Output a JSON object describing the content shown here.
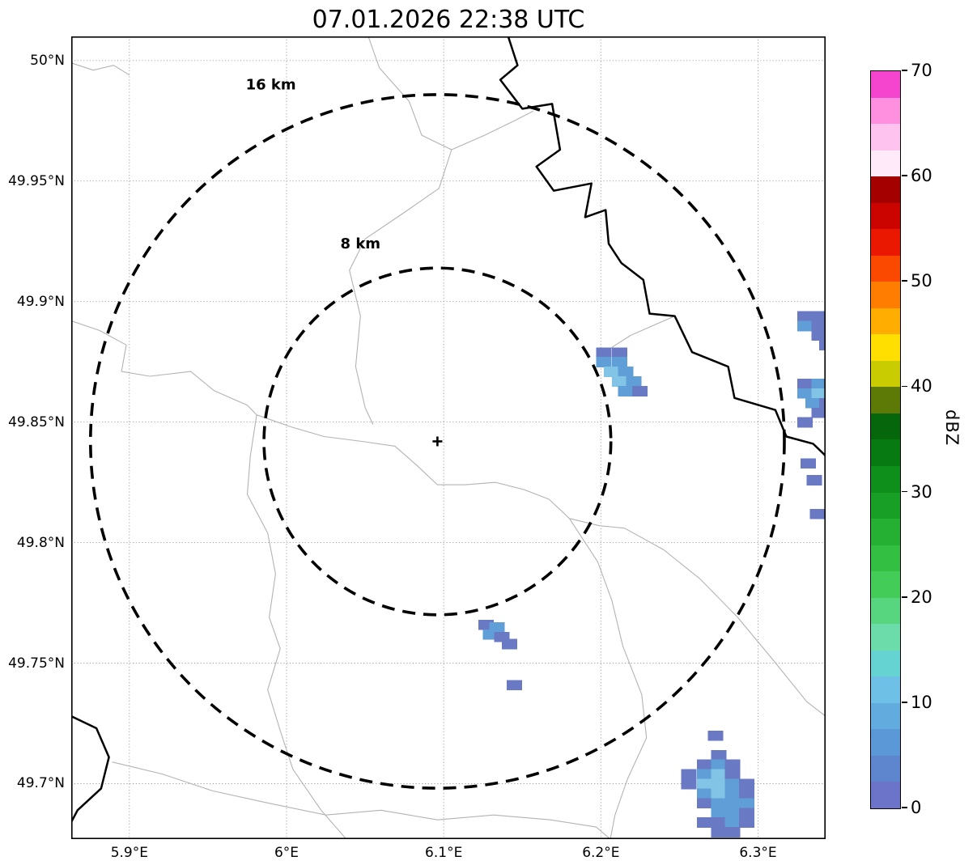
{
  "title": "07.01.2026 22:38 UTC",
  "chart_data": {
    "type": "heatmap",
    "title": "07.01.2026 22:38 UTC",
    "projection": "lon-lat",
    "grid": true,
    "extent": {
      "lon_min": 5.863,
      "lon_max": 6.343,
      "lat_min": 49.677,
      "lat_max": 50.01
    },
    "x_ticks": [
      {
        "lon": 5.9,
        "label": "5.9°E"
      },
      {
        "lon": 6.0,
        "label": "6°E"
      },
      {
        "lon": 6.1,
        "label": "6.1°E"
      },
      {
        "lon": 6.2,
        "label": "6.2°E"
      },
      {
        "lon": 6.3,
        "label": "6.3°E"
      }
    ],
    "y_ticks": [
      {
        "lat": 50.0,
        "label": "50°N"
      },
      {
        "lat": 49.95,
        "label": "49.95°N"
      },
      {
        "lat": 49.9,
        "label": "49.9°N"
      },
      {
        "lat": 49.85,
        "label": "49.85°N"
      },
      {
        "lat": 49.8,
        "label": "49.8°N"
      },
      {
        "lat": 49.75,
        "label": "49.75°N"
      },
      {
        "lat": 49.7,
        "label": "49.7°N"
      }
    ],
    "radar_center": {
      "lon": 6.096,
      "lat": 49.842
    },
    "range_rings": [
      {
        "radius_km": 16,
        "label": "16 km",
        "label_lon": 5.99,
        "label_lat": 49.988
      },
      {
        "radius_km": 8,
        "label": "8 km",
        "label_lon": 6.047,
        "label_lat": 49.922
      }
    ],
    "colorbar": {
      "label": "dBZ",
      "min": 0,
      "max": 70,
      "ticks": [
        0,
        10,
        20,
        30,
        40,
        50,
        60,
        70
      ],
      "segment_step": 2.5,
      "segment_colors_bottom_to_top": [
        "#6b74c9",
        "#5d86cf",
        "#5a98d7",
        "#62abdf",
        "#6fc0e6",
        "#65d3d1",
        "#6cdcaa",
        "#57d67f",
        "#44cc59",
        "#33bf42",
        "#25b033",
        "#18a026",
        "#0e8e1b",
        "#087a12",
        "#05660b",
        "#5d7a07",
        "#c8cc00",
        "#ffdf00",
        "#ffae00",
        "#ff7d00",
        "#fb4a00",
        "#ea1800",
        "#cb0400",
        "#a40000",
        "#ffeaf9",
        "#ffc3ef",
        "#ff90e0",
        "#f544cd"
      ]
    },
    "echo_palette": {
      "1": "#6a79c4",
      "2": "#5f9ed6",
      "3": "#82c4e6"
    },
    "echo_cell_deg": {
      "w": 0.0095,
      "h": 0.0041
    },
    "echoes": [
      [
        6.197,
        49.881,
        1
      ],
      [
        6.207,
        49.881,
        1
      ],
      [
        6.197,
        49.877,
        2
      ],
      [
        6.207,
        49.877,
        2
      ],
      [
        6.202,
        49.873,
        3
      ],
      [
        6.211,
        49.873,
        2
      ],
      [
        6.207,
        49.869,
        3
      ],
      [
        6.216,
        49.869,
        2
      ],
      [
        6.211,
        49.865,
        2
      ],
      [
        6.22,
        49.865,
        1
      ],
      [
        6.325,
        49.896,
        1
      ],
      [
        6.334,
        49.896,
        1
      ],
      [
        6.325,
        49.892,
        2
      ],
      [
        6.334,
        49.892,
        1
      ],
      [
        6.334,
        49.888,
        1
      ],
      [
        6.339,
        49.884,
        1
      ],
      [
        6.325,
        49.868,
        1
      ],
      [
        6.334,
        49.868,
        2
      ],
      [
        6.325,
        49.864,
        2
      ],
      [
        6.334,
        49.864,
        3
      ],
      [
        6.33,
        49.86,
        2
      ],
      [
        6.339,
        49.86,
        1
      ],
      [
        6.334,
        49.856,
        1
      ],
      [
        6.325,
        49.852,
        1
      ],
      [
        6.327,
        49.835,
        1
      ],
      [
        6.331,
        49.828,
        1
      ],
      [
        6.333,
        49.814,
        1
      ],
      [
        6.122,
        49.768,
        1
      ],
      [
        6.129,
        49.767,
        2
      ],
      [
        6.125,
        49.764,
        2
      ],
      [
        6.132,
        49.763,
        1
      ],
      [
        6.137,
        49.76,
        1
      ],
      [
        6.14,
        49.743,
        1
      ],
      [
        6.268,
        49.722,
        1
      ],
      [
        6.27,
        49.714,
        1
      ],
      [
        6.261,
        49.71,
        1
      ],
      [
        6.27,
        49.71,
        2
      ],
      [
        6.279,
        49.71,
        1
      ],
      [
        6.251,
        49.706,
        1
      ],
      [
        6.261,
        49.706,
        2
      ],
      [
        6.27,
        49.706,
        3
      ],
      [
        6.279,
        49.706,
        1
      ],
      [
        6.251,
        49.702,
        1
      ],
      [
        6.261,
        49.702,
        3
      ],
      [
        6.27,
        49.702,
        3
      ],
      [
        6.279,
        49.702,
        2
      ],
      [
        6.288,
        49.702,
        1
      ],
      [
        6.261,
        49.698,
        2
      ],
      [
        6.27,
        49.698,
        3
      ],
      [
        6.279,
        49.698,
        2
      ],
      [
        6.288,
        49.698,
        1
      ],
      [
        6.261,
        49.694,
        1
      ],
      [
        6.27,
        49.694,
        2
      ],
      [
        6.279,
        49.694,
        2
      ],
      [
        6.288,
        49.694,
        2
      ],
      [
        6.27,
        49.69,
        2
      ],
      [
        6.279,
        49.69,
        2
      ],
      [
        6.288,
        49.69,
        1
      ],
      [
        6.261,
        49.686,
        1
      ],
      [
        6.27,
        49.686,
        1
      ],
      [
        6.279,
        49.686,
        2
      ],
      [
        6.288,
        49.686,
        1
      ],
      [
        6.27,
        49.682,
        1
      ],
      [
        6.279,
        49.682,
        1
      ]
    ],
    "boundaries_gray": [
      [
        [
          6.052,
          50.01
        ],
        [
          6.059,
          49.997
        ],
        [
          6.078,
          49.983
        ],
        [
          6.086,
          49.969
        ],
        [
          6.105,
          49.963
        ],
        [
          6.097,
          49.947
        ],
        [
          6.075,
          49.937
        ],
        [
          6.05,
          49.926
        ],
        [
          6.04,
          49.913
        ],
        [
          6.047,
          49.894
        ],
        [
          6.044,
          49.873
        ],
        [
          6.05,
          49.856
        ],
        [
          6.055,
          49.849
        ]
      ],
      [
        [
          6.105,
          49.963
        ],
        [
          6.126,
          49.969
        ],
        [
          6.145,
          49.975
        ],
        [
          6.157,
          49.979
        ]
      ],
      [
        [
          5.863,
          49.892
        ],
        [
          5.881,
          49.888
        ],
        [
          5.898,
          49.882
        ],
        [
          5.895,
          49.871
        ],
        [
          5.913,
          49.869
        ],
        [
          5.939,
          49.871
        ],
        [
          5.954,
          49.863
        ],
        [
          5.975,
          49.857
        ],
        [
          5.981,
          49.853
        ],
        [
          5.977,
          49.836
        ],
        [
          5.975,
          49.82
        ],
        [
          5.988,
          49.804
        ],
        [
          5.993,
          49.787
        ],
        [
          5.989,
          49.769
        ],
        [
          5.996,
          49.756
        ],
        [
          5.988,
          49.739
        ],
        [
          5.996,
          49.722
        ],
        [
          6.004,
          49.706
        ],
        [
          6.022,
          49.689
        ],
        [
          6.038,
          49.677
        ]
      ],
      [
        [
          5.981,
          49.853
        ],
        [
          6.003,
          49.848
        ],
        [
          6.024,
          49.844
        ],
        [
          6.048,
          49.842
        ],
        [
          6.069,
          49.84
        ],
        [
          6.083,
          49.832
        ],
        [
          6.096,
          49.824
        ],
        [
          6.114,
          49.824
        ],
        [
          6.133,
          49.825
        ],
        [
          6.151,
          49.822
        ],
        [
          6.167,
          49.818
        ],
        [
          6.18,
          49.81
        ],
        [
          6.199,
          49.807
        ],
        [
          6.215,
          49.806
        ]
      ],
      [
        [
          6.215,
          49.806
        ],
        [
          6.24,
          49.797
        ],
        [
          6.263,
          49.785
        ],
        [
          6.287,
          49.769
        ],
        [
          6.31,
          49.751
        ],
        [
          6.331,
          49.734
        ],
        [
          6.343,
          49.728
        ]
      ],
      [
        [
          6.18,
          49.81
        ],
        [
          6.198,
          49.792
        ],
        [
          6.207,
          49.776
        ],
        [
          6.214,
          49.757
        ],
        [
          6.226,
          49.737
        ],
        [
          6.229,
          49.719
        ],
        [
          6.217,
          49.702
        ],
        [
          6.209,
          49.687
        ],
        [
          6.206,
          49.677
        ]
      ],
      [
        [
          5.889,
          49.709
        ],
        [
          5.921,
          49.704
        ],
        [
          5.953,
          49.697
        ],
        [
          5.988,
          49.692
        ],
        [
          6.025,
          49.687
        ],
        [
          6.06,
          49.689
        ],
        [
          6.096,
          49.685
        ],
        [
          6.132,
          49.687
        ],
        [
          6.168,
          49.685
        ],
        [
          6.197,
          49.682
        ],
        [
          6.206,
          49.677
        ]
      ],
      [
        [
          5.863,
          49.999
        ],
        [
          5.877,
          49.996
        ],
        [
          5.89,
          49.998
        ],
        [
          5.9,
          49.994
        ]
      ],
      [
        [
          6.247,
          49.894
        ],
        [
          6.233,
          49.89
        ],
        [
          6.219,
          49.886
        ],
        [
          6.207,
          49.881
        ],
        [
          6.2,
          49.877
        ]
      ]
    ],
    "boundaries_black": [
      [
        [
          6.141,
          50.01
        ],
        [
          6.147,
          49.998
        ],
        [
          6.136,
          49.992
        ],
        [
          6.15,
          49.98
        ],
        [
          6.169,
          49.982
        ],
        [
          6.174,
          49.963
        ],
        [
          6.159,
          49.956
        ],
        [
          6.17,
          49.946
        ],
        [
          6.194,
          49.949
        ],
        [
          6.19,
          49.935
        ],
        [
          6.203,
          49.938
        ],
        [
          6.205,
          49.924
        ],
        [
          6.213,
          49.916
        ],
        [
          6.227,
          49.909
        ],
        [
          6.231,
          49.895
        ],
        [
          6.247,
          49.894
        ],
        [
          6.258,
          49.879
        ],
        [
          6.281,
          49.873
        ],
        [
          6.285,
          49.86
        ],
        [
          6.311,
          49.855
        ],
        [
          6.318,
          49.844
        ],
        [
          6.335,
          49.841
        ],
        [
          6.343,
          49.836
        ]
      ],
      [
        [
          5.863,
          49.728
        ],
        [
          5.879,
          49.723
        ],
        [
          5.887,
          49.711
        ],
        [
          5.882,
          49.698
        ],
        [
          5.867,
          49.689
        ],
        [
          5.863,
          49.684
        ]
      ]
    ],
    "style": {
      "grid_color": "#999999",
      "boundary_gray": "#b3b3b3",
      "boundary_black": "#000000",
      "ring_color": "#000000",
      "background": "#ffffff"
    }
  }
}
